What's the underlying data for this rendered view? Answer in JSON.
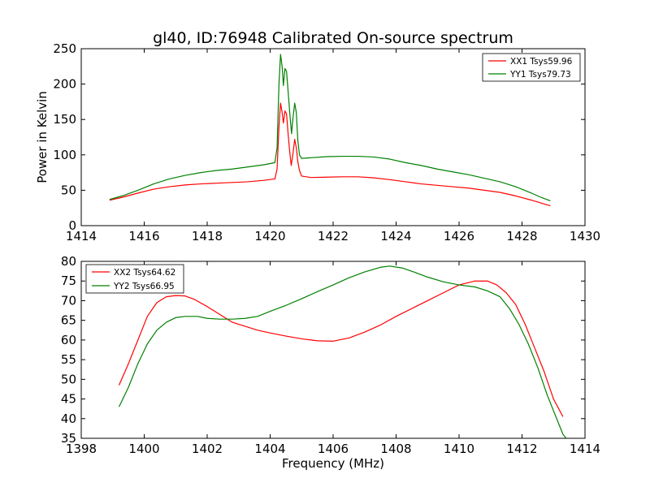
{
  "chart_data": [
    {
      "type": "line",
      "title": "gl40, ID:76948 Calibrated On-source spectrum",
      "xlabel": "",
      "ylabel": "Power in Kelvin",
      "xlim": [
        1414,
        1430
      ],
      "ylim": [
        0,
        250
      ],
      "xticks": [
        "1414",
        "1416",
        "1418",
        "1420",
        "1422",
        "1424",
        "1426",
        "1428",
        "1430"
      ],
      "yticks": [
        "0",
        "50",
        "100",
        "150",
        "200",
        "250"
      ],
      "grid": false,
      "legend_position": "top-right",
      "series": [
        {
          "name": "XX1 Tsys59.96",
          "color": "#ff0000",
          "points": [
            [
              1414.9,
              36
            ],
            [
              1415.3,
              40
            ],
            [
              1415.8,
              46
            ],
            [
              1416.3,
              51.5
            ],
            [
              1416.8,
              55
            ],
            [
              1417.3,
              57.5
            ],
            [
              1417.8,
              59
            ],
            [
              1418.3,
              60
            ],
            [
              1418.8,
              61
            ],
            [
              1419.3,
              62
            ],
            [
              1419.8,
              64
            ],
            [
              1420.15,
              66
            ],
            [
              1420.22,
              80
            ],
            [
              1420.28,
              140
            ],
            [
              1420.33,
              173
            ],
            [
              1420.38,
              160
            ],
            [
              1420.42,
              145
            ],
            [
              1420.47,
              162
            ],
            [
              1420.52,
              158
            ],
            [
              1420.57,
              130
            ],
            [
              1420.62,
              105
            ],
            [
              1420.67,
              85
            ],
            [
              1420.72,
              100
            ],
            [
              1420.78,
              122
            ],
            [
              1420.83,
              110
            ],
            [
              1420.88,
              90
            ],
            [
              1420.93,
              78
            ],
            [
              1421.0,
              70
            ],
            [
              1421.3,
              68
            ],
            [
              1421.8,
              68.5
            ],
            [
              1422.3,
              69
            ],
            [
              1422.8,
              69
            ],
            [
              1423.3,
              67.5
            ],
            [
              1423.8,
              65
            ],
            [
              1424.3,
              62
            ],
            [
              1424.8,
              59
            ],
            [
              1425.3,
              57
            ],
            [
              1425.8,
              55
            ],
            [
              1426.3,
              53
            ],
            [
              1426.8,
              50
            ],
            [
              1427.3,
              47
            ],
            [
              1427.8,
              42
            ],
            [
              1428.3,
              36
            ],
            [
              1428.6,
              32
            ],
            [
              1428.9,
              28
            ]
          ]
        },
        {
          "name": "YY1 Tsys79.73",
          "color": "#008000",
          "points": [
            [
              1414.9,
              37
            ],
            [
              1415.3,
              42
            ],
            [
              1415.8,
              50
            ],
            [
              1416.3,
              59
            ],
            [
              1416.8,
              66
            ],
            [
              1417.3,
              71
            ],
            [
              1417.8,
              75
            ],
            [
              1418.3,
              78
            ],
            [
              1418.8,
              80
            ],
            [
              1419.3,
              83
            ],
            [
              1419.8,
              86
            ],
            [
              1420.15,
              89
            ],
            [
              1420.22,
              110
            ],
            [
              1420.28,
              200
            ],
            [
              1420.33,
              242
            ],
            [
              1420.38,
              225
            ],
            [
              1420.42,
              198
            ],
            [
              1420.47,
              222
            ],
            [
              1420.52,
              218
            ],
            [
              1420.57,
              190
            ],
            [
              1420.63,
              155
            ],
            [
              1420.68,
              130
            ],
            [
              1420.72,
              150
            ],
            [
              1420.78,
              173
            ],
            [
              1420.83,
              160
            ],
            [
              1420.88,
              120
            ],
            [
              1420.93,
              100
            ],
            [
              1421.0,
              95
            ],
            [
              1421.3,
              96
            ],
            [
              1421.8,
              97.5
            ],
            [
              1422.3,
              98
            ],
            [
              1422.8,
              98
            ],
            [
              1423.3,
              97
            ],
            [
              1423.8,
              94
            ],
            [
              1424.3,
              89
            ],
            [
              1424.8,
              85
            ],
            [
              1425.3,
              80
            ],
            [
              1425.8,
              76
            ],
            [
              1426.3,
              72
            ],
            [
              1426.8,
              67
            ],
            [
              1427.3,
              62
            ],
            [
              1427.8,
              55
            ],
            [
              1428.3,
              46
            ],
            [
              1428.6,
              40
            ],
            [
              1428.9,
              35
            ]
          ]
        }
      ]
    },
    {
      "type": "line",
      "title": "",
      "xlabel": "Frequency (MHz)",
      "ylabel": "",
      "xlim": [
        1398,
        1414
      ],
      "ylim": [
        35,
        80
      ],
      "xticks": [
        "1398",
        "1400",
        "1402",
        "1404",
        "1406",
        "1408",
        "1410",
        "1412",
        "1414"
      ],
      "yticks": [
        "35",
        "40",
        "45",
        "50",
        "55",
        "60",
        "65",
        "70",
        "75",
        "80"
      ],
      "grid": false,
      "legend_position": "top-left",
      "series": [
        {
          "name": "XX2 Tsys64.62",
          "color": "#ff0000",
          "points": [
            [
              1399.2,
              48.5
            ],
            [
              1399.5,
              54
            ],
            [
              1399.8,
              60
            ],
            [
              1400.1,
              66
            ],
            [
              1400.4,
              69.5
            ],
            [
              1400.7,
              71
            ],
            [
              1401.0,
              71.3
            ],
            [
              1401.3,
              71.2
            ],
            [
              1401.6,
              70.3
            ],
            [
              1402.0,
              68.5
            ],
            [
              1402.4,
              66.5
            ],
            [
              1402.8,
              64.5
            ],
            [
              1403.2,
              63.5
            ],
            [
              1403.6,
              62.5
            ],
            [
              1404.0,
              61.8
            ],
            [
              1404.5,
              61
            ],
            [
              1405.0,
              60.3
            ],
            [
              1405.5,
              59.8
            ],
            [
              1406.0,
              59.7
            ],
            [
              1406.5,
              60.5
            ],
            [
              1407.0,
              62
            ],
            [
              1407.5,
              63.8
            ],
            [
              1408.0,
              66
            ],
            [
              1408.5,
              68
            ],
            [
              1409.0,
              70
            ],
            [
              1409.5,
              72
            ],
            [
              1410.0,
              74
            ],
            [
              1410.5,
              75
            ],
            [
              1410.9,
              75
            ],
            [
              1411.2,
              74
            ],
            [
              1411.5,
              72
            ],
            [
              1411.8,
              69
            ],
            [
              1412.1,
              64
            ],
            [
              1412.4,
              58
            ],
            [
              1412.7,
              52
            ],
            [
              1413.0,
              45
            ],
            [
              1413.3,
              40.5
            ]
          ]
        },
        {
          "name": "YY2 Tsys66.95",
          "color": "#008000",
          "points": [
            [
              1399.2,
              43
            ],
            [
              1399.5,
              48
            ],
            [
              1399.8,
              54
            ],
            [
              1400.1,
              59
            ],
            [
              1400.4,
              62.5
            ],
            [
              1400.7,
              64.5
            ],
            [
              1401.0,
              65.7
            ],
            [
              1401.3,
              66
            ],
            [
              1401.7,
              66
            ],
            [
              1402.0,
              65.5
            ],
            [
              1402.4,
              65.3
            ],
            [
              1402.8,
              65.3
            ],
            [
              1403.2,
              65.5
            ],
            [
              1403.6,
              66
            ],
            [
              1404.0,
              67.3
            ],
            [
              1404.5,
              68.8
            ],
            [
              1405.0,
              70.5
            ],
            [
              1405.5,
              72.3
            ],
            [
              1406.0,
              74
            ],
            [
              1406.5,
              75.8
            ],
            [
              1407.0,
              77.3
            ],
            [
              1407.5,
              78.5
            ],
            [
              1407.8,
              78.8
            ],
            [
              1408.2,
              78.3
            ],
            [
              1408.6,
              77.2
            ],
            [
              1409.0,
              76
            ],
            [
              1409.5,
              74.8
            ],
            [
              1410.0,
              74
            ],
            [
              1410.5,
              73.5
            ],
            [
              1410.9,
              72.5
            ],
            [
              1411.3,
              71
            ],
            [
              1411.6,
              68
            ],
            [
              1411.9,
              64
            ],
            [
              1412.2,
              59
            ],
            [
              1412.5,
              53
            ],
            [
              1412.8,
              46
            ],
            [
              1413.1,
              40
            ],
            [
              1413.3,
              36
            ],
            [
              1413.4,
              35
            ]
          ]
        }
      ]
    }
  ]
}
